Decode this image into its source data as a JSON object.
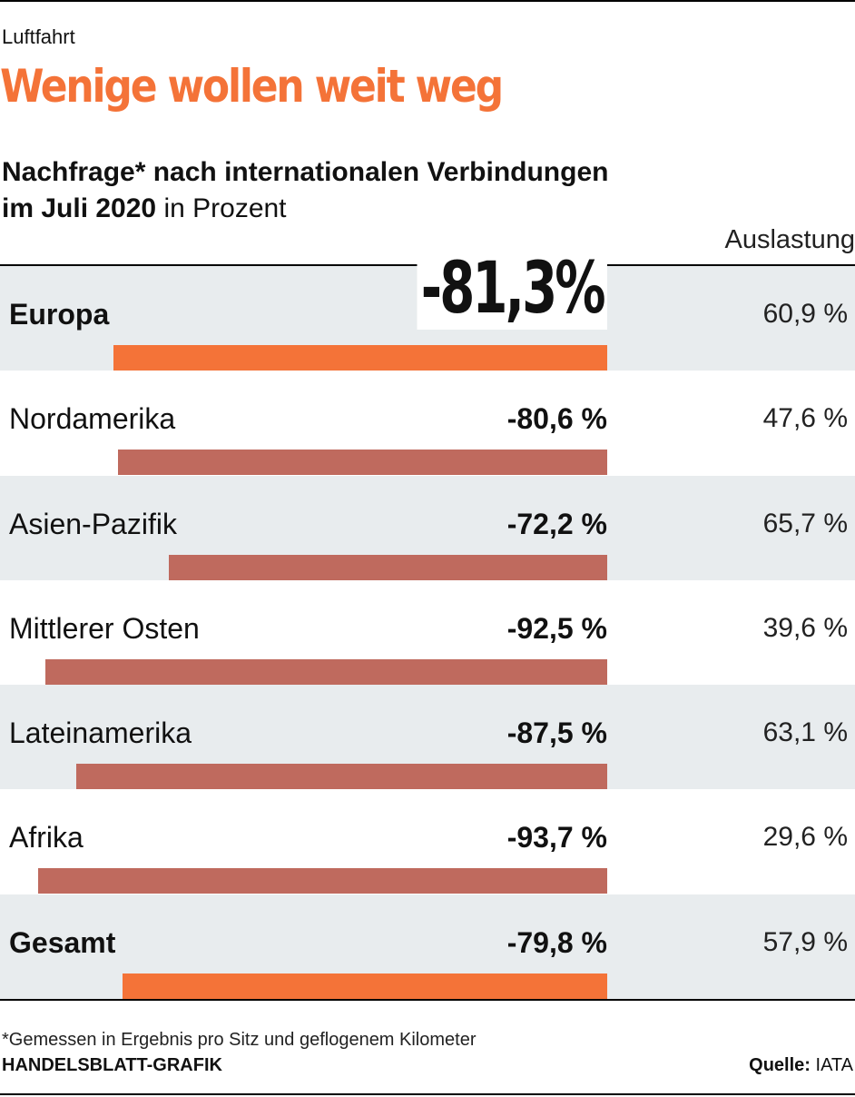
{
  "kicker": "Luftfahrt",
  "headline": "Wenige wollen weit weg",
  "subtitle": {
    "bold_line1": "Nachfrage* nach internationalen Verbindungen",
    "bold_line2": "im Juli 2020",
    "unit": " in Prozent"
  },
  "column_header": "Auslastung",
  "highlight_value": "-81,3%",
  "colors": {
    "accent": "#f47338",
    "bar_default": "#bf6a5e",
    "row_shade": "#e8ecee"
  },
  "chart_data": {
    "type": "bar",
    "orientation": "horizontal",
    "title": "Nachfrage* nach internationalen Verbindungen im Juli 2020 in Prozent",
    "ylabel": "in Prozent",
    "xlim": [
      -100,
      0
    ],
    "categories": [
      "Europa",
      "Nordamerika",
      "Asien-Pazifik",
      "Mittlerer Osten",
      "Lateinamerika",
      "Afrika",
      "Gesamt"
    ],
    "values": [
      -81.3,
      -80.6,
      -72.2,
      -92.5,
      -87.5,
      -93.7,
      -79.8
    ],
    "value_labels": [
      "-81,3 %",
      "-80,6 %",
      "-72,2 %",
      "-92,5 %",
      "-87,5 %",
      "-93,7 %",
      "-79,8 %"
    ],
    "highlight": [
      true,
      false,
      false,
      false,
      false,
      false,
      true
    ],
    "bold_label": [
      true,
      false,
      false,
      false,
      false,
      false,
      true
    ],
    "secondary_series": {
      "name": "Auslastung",
      "values": [
        60.9,
        47.6,
        65.7,
        39.6,
        63.1,
        29.6,
        57.9
      ],
      "labels": [
        "60,9 %",
        "47,6 %",
        "65,7 %",
        "39,6 %",
        "63,1 %",
        "29,6 %",
        "57,9 %"
      ]
    }
  },
  "footnote": "*Gemessen in Ergebnis pro Sitz und geflogenem Kilometer",
  "credit": "HANDELSBLATT-GRAFIK",
  "source": {
    "label": "Quelle:",
    "value": " IATA"
  }
}
